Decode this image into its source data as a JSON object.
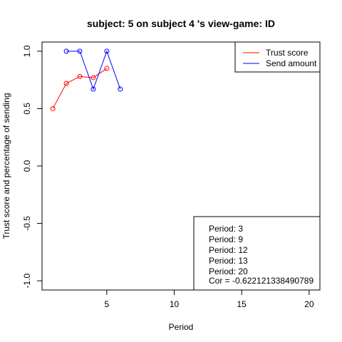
{
  "chart_data": {
    "type": "line",
    "title": "subject:  5  on subject  4 's view-game:  ID",
    "xlabel": "Period",
    "ylabel": "Trust score and percentage of sending",
    "xlim": [
      0.2,
      20.8
    ],
    "ylim": [
      -1.08,
      1.08
    ],
    "xticks": [
      5,
      10,
      15,
      20
    ],
    "yticks": [
      -1.0,
      -0.5,
      0.0,
      0.5,
      1.0
    ],
    "xtick_labels": [
      "5",
      "10",
      "15",
      "20"
    ],
    "ytick_labels": [
      "-1.0",
      "-0.5",
      "0.0",
      "0.5",
      "1.0"
    ],
    "grid": false,
    "series": [
      {
        "name": "Trust score",
        "color": "#ff0000",
        "x": [
          1,
          2,
          3,
          4,
          5
        ],
        "y": [
          0.5,
          0.72,
          0.78,
          0.77,
          0.85
        ]
      },
      {
        "name": "Send amount",
        "color": "#0000ff",
        "x": [
          2,
          3,
          4,
          5,
          6
        ],
        "y": [
          1.0,
          1.0,
          0.67,
          1.0,
          0.67
        ]
      }
    ],
    "legend": {
      "position": "top-right",
      "entries": [
        "Trust score",
        "Send amount"
      ]
    },
    "annotation": {
      "position": "bottom-right",
      "lines": [
        "Period:  3",
        "Period:  9",
        "Period:  12",
        "Period:  13",
        "Period:  20",
        "Cor =  -0.622121338490789"
      ]
    }
  }
}
